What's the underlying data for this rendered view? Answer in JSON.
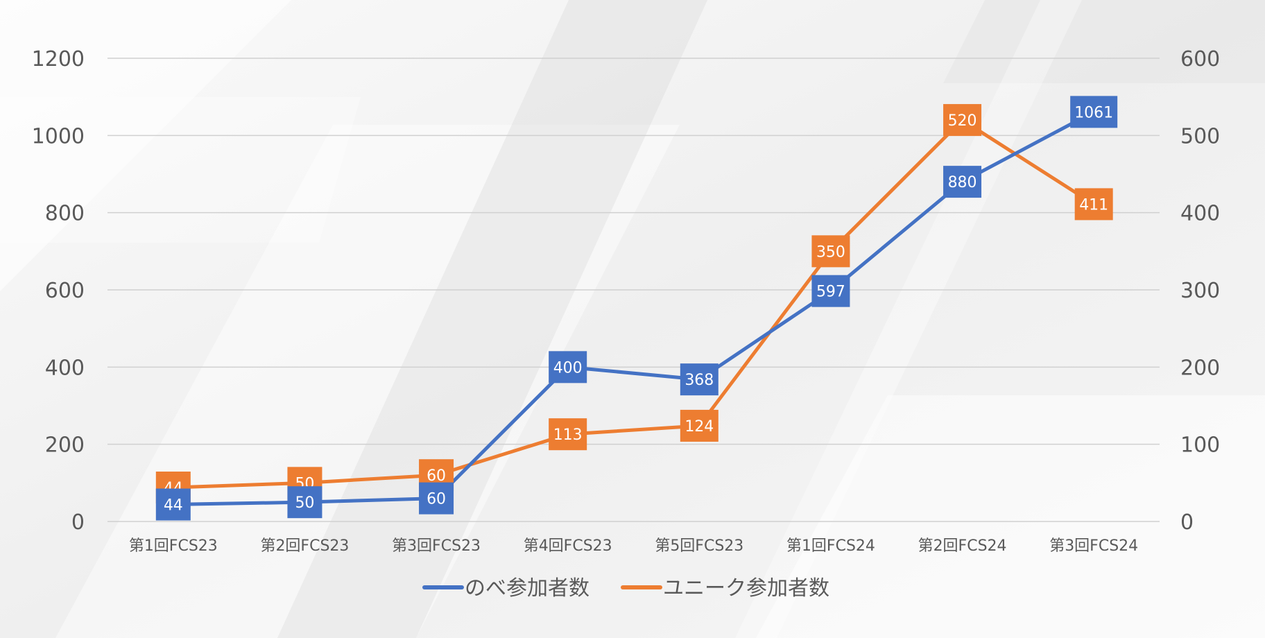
{
  "chart_data": {
    "type": "line",
    "title": "",
    "categories": [
      "第1回FCS23",
      "第2回FCS23",
      "第3回FCS23",
      "第4回FCS23",
      "第5回FCS23",
      "第1回FCS24",
      "第2回FCS24",
      "第3回FCS24"
    ],
    "series": [
      {
        "name": "のべ参加者数",
        "axis": "left",
        "color": "#4472C4",
        "values": [
          44,
          50,
          60,
          400,
          368,
          597,
          880,
          1061
        ]
      },
      {
        "name": "ユニーク参加者数",
        "axis": "right",
        "color": "#ED7D31",
        "values": [
          44,
          50,
          60,
          113,
          124,
          350,
          520,
          411
        ]
      }
    ],
    "y_left": {
      "min": 0,
      "max": 1200,
      "ticks": [
        0,
        200,
        400,
        600,
        800,
        1000,
        1200
      ]
    },
    "y_right": {
      "min": 0,
      "max": 600,
      "ticks": [
        0,
        100,
        200,
        300,
        400,
        500,
        600
      ]
    },
    "grid": true,
    "legend": "bottom",
    "markers": "square data labels"
  }
}
